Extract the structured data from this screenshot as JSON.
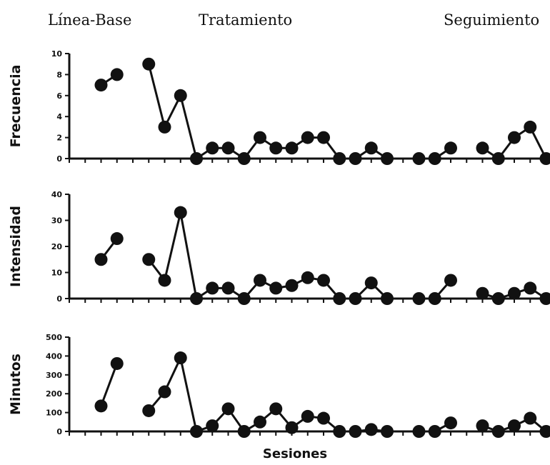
{
  "phases": {
    "baseline": "Línea-Base",
    "treatment": "Tratamiento",
    "followup": "Seguimiento"
  },
  "xlabel": "Sesiones",
  "chart_data": [
    {
      "type": "line",
      "ylabel": "Frecuencia",
      "ylim": [
        0,
        10
      ],
      "yticks": [
        "0",
        "2",
        "4",
        "6",
        "8",
        "10"
      ],
      "segments": [
        [
          [
            2,
            7
          ],
          [
            3,
            8
          ]
        ],
        [
          [
            5,
            9
          ],
          [
            6,
            3
          ],
          [
            7,
            6
          ],
          [
            8,
            0
          ],
          [
            9,
            1
          ],
          [
            10,
            1
          ],
          [
            11,
            0
          ],
          [
            12,
            2
          ],
          [
            13,
            1
          ],
          [
            14,
            1
          ],
          [
            15,
            2
          ],
          [
            16,
            2
          ],
          [
            17,
            0
          ],
          [
            18,
            0
          ],
          [
            19,
            1
          ],
          [
            20,
            0
          ]
        ],
        [
          [
            22,
            0
          ],
          [
            23,
            0
          ],
          [
            24,
            1
          ]
        ],
        [
          [
            26,
            1
          ],
          [
            27,
            0
          ],
          [
            28,
            2
          ],
          [
            29,
            3
          ],
          [
            30,
            0
          ]
        ]
      ]
    },
    {
      "type": "line",
      "ylabel": "Intensidad",
      "ylim": [
        0,
        40
      ],
      "yticks": [
        "0",
        "10",
        "20",
        "30",
        "40"
      ],
      "segments": [
        [
          [
            2,
            15
          ],
          [
            3,
            23
          ]
        ],
        [
          [
            5,
            15
          ],
          [
            6,
            7
          ],
          [
            7,
            33
          ],
          [
            8,
            0
          ],
          [
            9,
            4
          ],
          [
            10,
            4
          ],
          [
            11,
            0
          ],
          [
            12,
            7
          ],
          [
            13,
            4
          ],
          [
            14,
            5
          ],
          [
            15,
            8
          ],
          [
            16,
            7
          ],
          [
            17,
            0
          ],
          [
            18,
            0
          ],
          [
            19,
            6
          ],
          [
            20,
            0
          ]
        ],
        [
          [
            22,
            0
          ],
          [
            23,
            0
          ],
          [
            24,
            7
          ]
        ],
        [
          [
            26,
            2
          ],
          [
            27,
            0
          ],
          [
            28,
            2
          ],
          [
            29,
            4
          ],
          [
            30,
            0
          ]
        ]
      ]
    },
    {
      "type": "line",
      "ylabel": "Minutos",
      "ylim": [
        0,
        500
      ],
      "yticks": [
        "0",
        "100",
        "200",
        "300",
        "400",
        "500"
      ],
      "segments": [
        [
          [
            2,
            135
          ],
          [
            3,
            360
          ]
        ],
        [
          [
            5,
            110
          ],
          [
            6,
            210
          ],
          [
            7,
            390
          ],
          [
            8,
            0
          ],
          [
            9,
            30
          ],
          [
            10,
            120
          ],
          [
            11,
            0
          ],
          [
            12,
            50
          ],
          [
            13,
            120
          ],
          [
            14,
            20
          ],
          [
            15,
            80
          ],
          [
            16,
            70
          ],
          [
            17,
            0
          ],
          [
            18,
            0
          ],
          [
            19,
            10
          ],
          [
            20,
            0
          ]
        ],
        [
          [
            22,
            0
          ],
          [
            23,
            0
          ],
          [
            24,
            45
          ]
        ],
        [
          [
            26,
            30
          ],
          [
            27,
            0
          ],
          [
            28,
            30
          ],
          [
            29,
            70
          ],
          [
            30,
            0
          ]
        ]
      ]
    }
  ]
}
